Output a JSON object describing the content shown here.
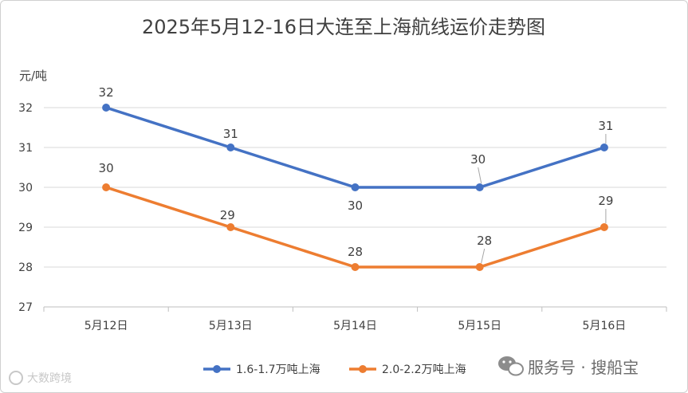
{
  "chart_data": {
    "type": "line",
    "title": "2025年5月12-16日大连至上海航线运价走势图",
    "ylabel": "元/吨",
    "categories": [
      "5月12日",
      "5月13日",
      "5月14日",
      "5月15日",
      "5月16日"
    ],
    "ylim": [
      27,
      32
    ],
    "yticks": [
      27,
      28,
      29,
      30,
      31,
      32
    ],
    "grid": true,
    "legend_position": "bottom",
    "series": [
      {
        "name": "1.6-1.7万吨上海",
        "color": "#4472C4",
        "values": [
          32,
          31,
          30,
          30,
          31
        ]
      },
      {
        "name": "2.0-2.2万吨上海",
        "color": "#ED7D31",
        "values": [
          30,
          29,
          28,
          28,
          29
        ]
      }
    ]
  },
  "watermark": {
    "left_text": "大数跨境",
    "right_text": "服务号 · 搜船宝"
  }
}
